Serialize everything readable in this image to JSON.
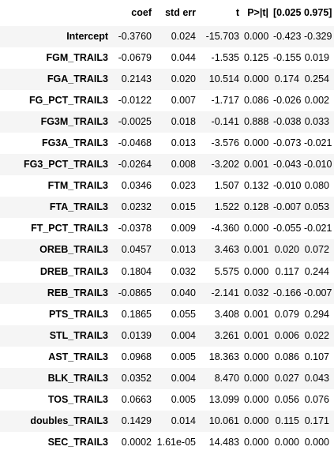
{
  "table": {
    "columns": [
      "coef",
      "std err",
      "t",
      "P>|t|",
      "[0.025",
      "0.975]"
    ],
    "rows": [
      {
        "name": "Intercept",
        "cells": [
          "-0.3760",
          "0.024",
          "-15.703",
          "0.000",
          "-0.423",
          "-0.329"
        ]
      },
      {
        "name": "FGM_TRAIL3",
        "cells": [
          "-0.0679",
          "0.044",
          "-1.535",
          "0.125",
          "-0.155",
          "0.019"
        ]
      },
      {
        "name": "FGA_TRAIL3",
        "cells": [
          "0.2143",
          "0.020",
          "10.514",
          "0.000",
          "0.174",
          "0.254"
        ]
      },
      {
        "name": "FG_PCT_TRAIL3",
        "cells": [
          "-0.0122",
          "0.007",
          "-1.717",
          "0.086",
          "-0.026",
          "0.002"
        ]
      },
      {
        "name": "FG3M_TRAIL3",
        "cells": [
          "-0.0025",
          "0.018",
          "-0.141",
          "0.888",
          "-0.038",
          "0.033"
        ]
      },
      {
        "name": "FG3A_TRAIL3",
        "cells": [
          "-0.0468",
          "0.013",
          "-3.576",
          "0.000",
          "-0.073",
          "-0.021"
        ]
      },
      {
        "name": "FG3_PCT_TRAIL3",
        "cells": [
          "-0.0264",
          "0.008",
          "-3.202",
          "0.001",
          "-0.043",
          "-0.010"
        ]
      },
      {
        "name": "FTM_TRAIL3",
        "cells": [
          "0.0346",
          "0.023",
          "1.507",
          "0.132",
          "-0.010",
          "0.080"
        ]
      },
      {
        "name": "FTA_TRAIL3",
        "cells": [
          "0.0232",
          "0.015",
          "1.522",
          "0.128",
          "-0.007",
          "0.053"
        ]
      },
      {
        "name": "FT_PCT_TRAIL3",
        "cells": [
          "-0.0378",
          "0.009",
          "-4.360",
          "0.000",
          "-0.055",
          "-0.021"
        ]
      },
      {
        "name": "OREB_TRAIL3",
        "cells": [
          "0.0457",
          "0.013",
          "3.463",
          "0.001",
          "0.020",
          "0.072"
        ]
      },
      {
        "name": "DREB_TRAIL3",
        "cells": [
          "0.1804",
          "0.032",
          "5.575",
          "0.000",
          "0.117",
          "0.244"
        ]
      },
      {
        "name": "REB_TRAIL3",
        "cells": [
          "-0.0865",
          "0.040",
          "-2.141",
          "0.032",
          "-0.166",
          "-0.007"
        ]
      },
      {
        "name": "PTS_TRAIL3",
        "cells": [
          "0.1865",
          "0.055",
          "3.408",
          "0.001",
          "0.079",
          "0.294"
        ]
      },
      {
        "name": "STL_TRAIL3",
        "cells": [
          "0.0139",
          "0.004",
          "3.261",
          "0.001",
          "0.006",
          "0.022"
        ]
      },
      {
        "name": "AST_TRAIL3",
        "cells": [
          "0.0968",
          "0.005",
          "18.363",
          "0.000",
          "0.086",
          "0.107"
        ]
      },
      {
        "name": "BLK_TRAIL3",
        "cells": [
          "0.0352",
          "0.004",
          "8.470",
          "0.000",
          "0.027",
          "0.043"
        ]
      },
      {
        "name": "TOS_TRAIL3",
        "cells": [
          "0.0663",
          "0.005",
          "13.099",
          "0.000",
          "0.056",
          "0.076"
        ]
      },
      {
        "name": "doubles_TRAIL3",
        "cells": [
          "0.1429",
          "0.014",
          "10.061",
          "0.000",
          "0.115",
          "0.171"
        ]
      },
      {
        "name": "SEC_TRAIL3",
        "cells": [
          "0.0002",
          "1.61e-05",
          "14.483",
          "0.000",
          "0.000",
          "0.000"
        ]
      }
    ]
  }
}
